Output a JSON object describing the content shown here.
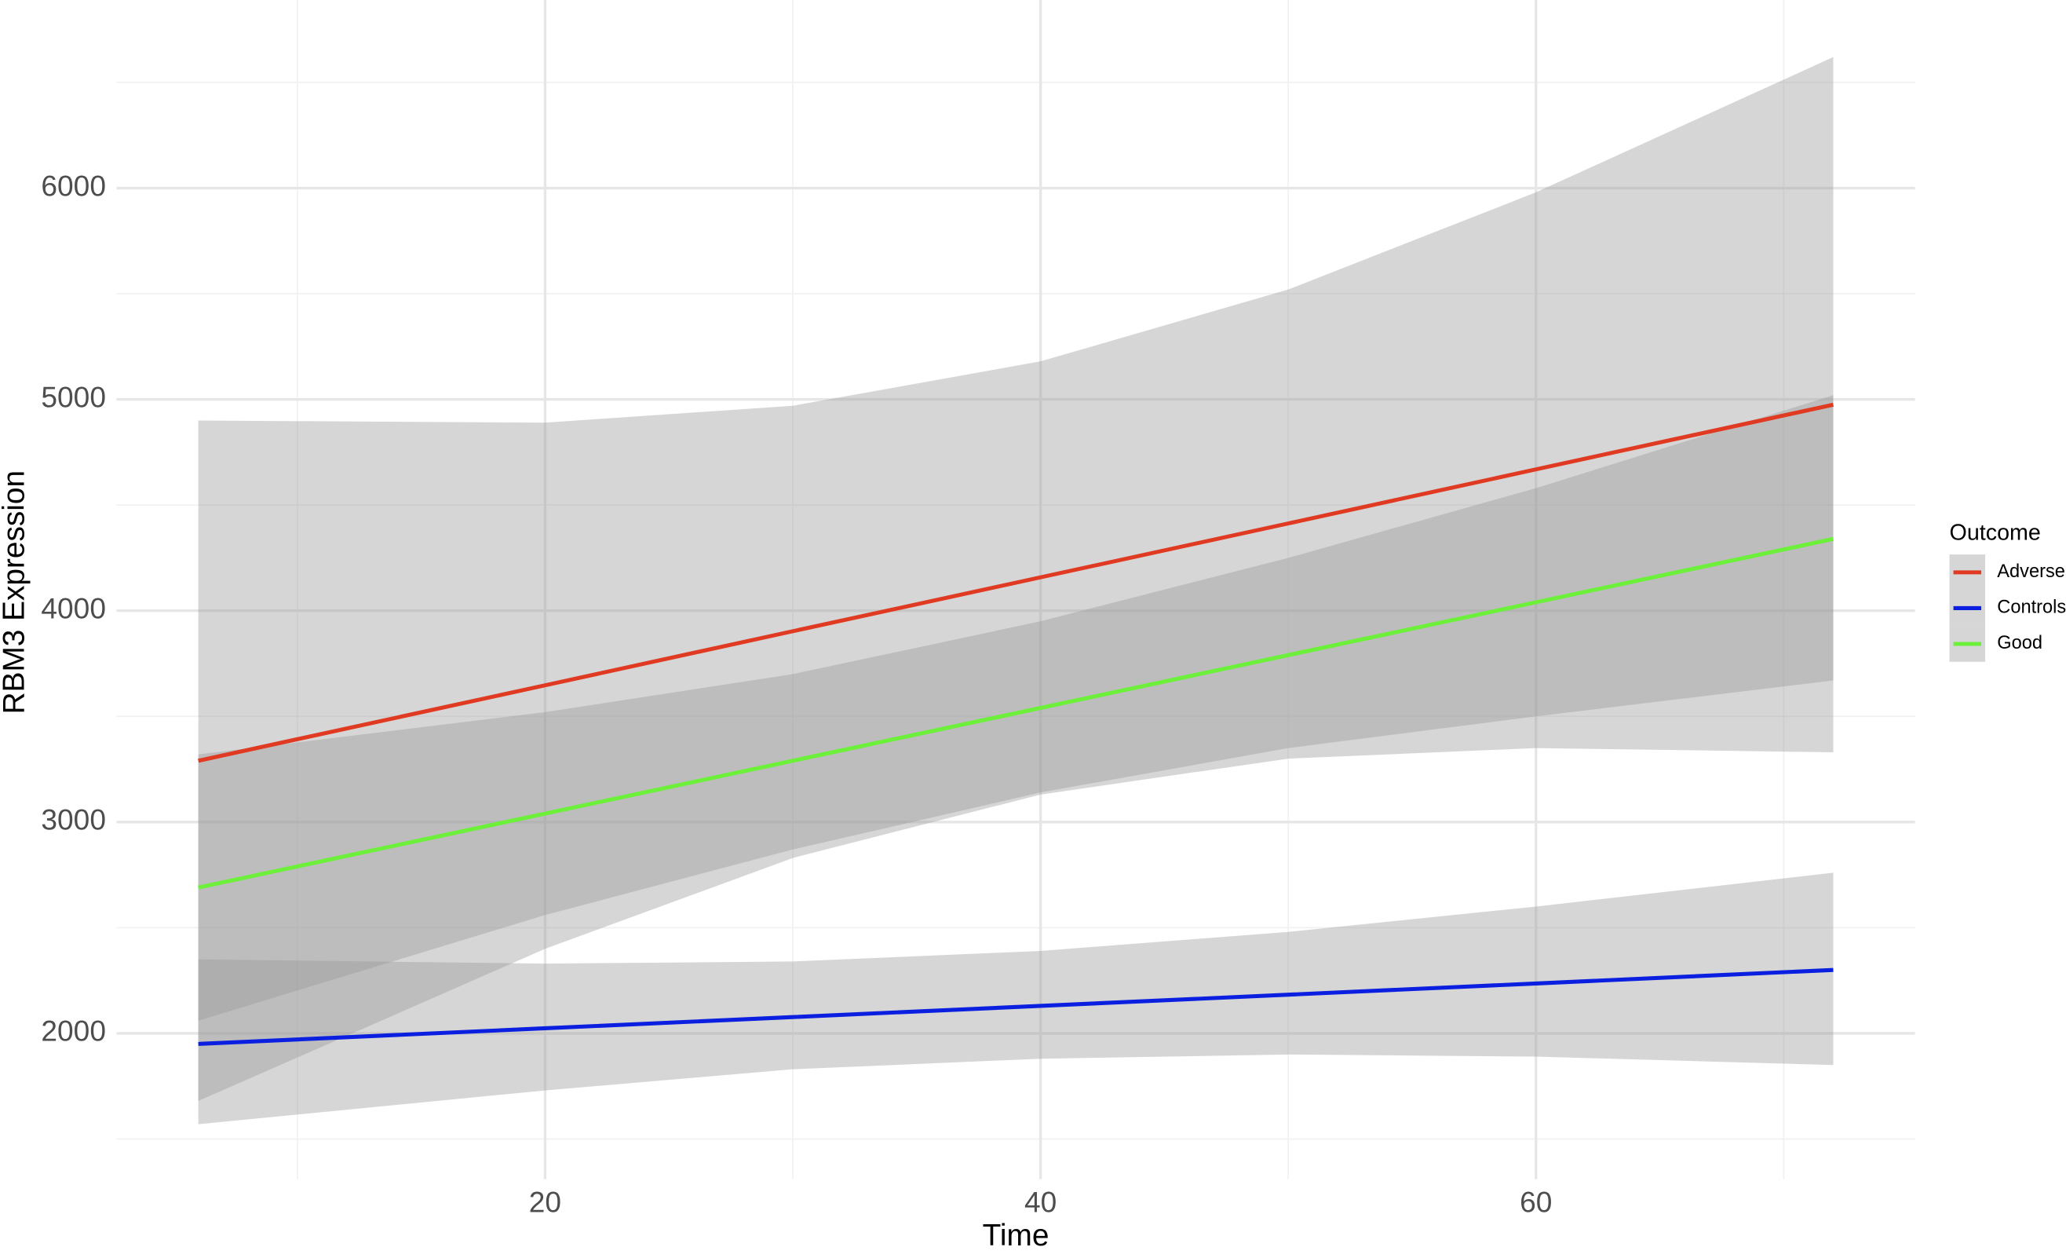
{
  "chart_data": {
    "type": "line",
    "xlabel": "Time",
    "ylabel": "RBM3 Expression",
    "legend_title": "Outcome",
    "legend_position": "right",
    "grid": true,
    "band_color": "#999999",
    "x": [
      6,
      20,
      30,
      40,
      50,
      60,
      72
    ],
    "series": [
      {
        "name": "Adverse",
        "color": "#e03a23",
        "values": [
          3290,
          3647,
          3903,
          4158,
          4413,
          4669,
          4975
        ],
        "lower": [
          1680,
          2400,
          2830,
          3130,
          3300,
          3350,
          3330
        ],
        "upper": [
          4900,
          4890,
          4970,
          5180,
          5520,
          5980,
          6620
        ]
      },
      {
        "name": "Controls",
        "color": "#0a1fe0",
        "values": [
          1950,
          2024,
          2077,
          2130,
          2183,
          2236,
          2300
        ],
        "lower": [
          1570,
          1730,
          1830,
          1880,
          1900,
          1890,
          1850
        ],
        "upper": [
          2350,
          2330,
          2340,
          2390,
          2480,
          2600,
          2760
        ]
      },
      {
        "name": "Good",
        "color": "#6cf03a",
        "values": [
          2690,
          3040,
          3290,
          3540,
          3790,
          4040,
          4340
        ],
        "lower": [
          2060,
          2560,
          2870,
          3140,
          3350,
          3500,
          3670
        ],
        "upper": [
          3320,
          3520,
          3700,
          3950,
          4250,
          4580,
          5020
        ]
      }
    ],
    "xlim": [
      2.7,
      75.3
    ],
    "ylim": [
      1310,
      6890
    ],
    "xticks": [
      20,
      40,
      60
    ],
    "yticks": [
      2000,
      3000,
      4000,
      5000,
      6000
    ],
    "xminor": [
      10,
      30,
      50,
      70
    ],
    "yminor": [
      1500,
      2500,
      3500,
      4500,
      5500,
      6500
    ]
  }
}
